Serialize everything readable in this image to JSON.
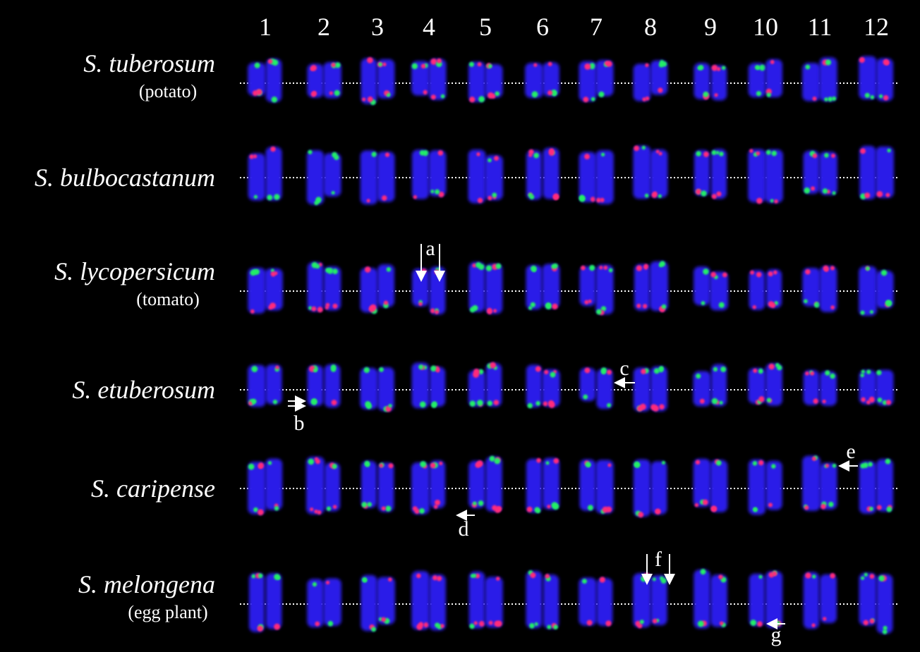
{
  "columns": [
    "1",
    "2",
    "3",
    "4",
    "5",
    "6",
    "7",
    "8",
    "9",
    "10",
    "11",
    "12"
  ],
  "rows": [
    {
      "species": "S. tuberosum",
      "common": "(potato)"
    },
    {
      "species": "S. bulbocastanum"
    },
    {
      "species": "S. lycopersicum",
      "common": "(tomato)"
    },
    {
      "species": "S. etuberosum"
    },
    {
      "species": "S. caripense"
    },
    {
      "species": "S. melongena",
      "common": "(egg plant)"
    }
  ],
  "annotations": [
    "a",
    "b",
    "c",
    "d",
    "e",
    "f",
    "g"
  ]
}
